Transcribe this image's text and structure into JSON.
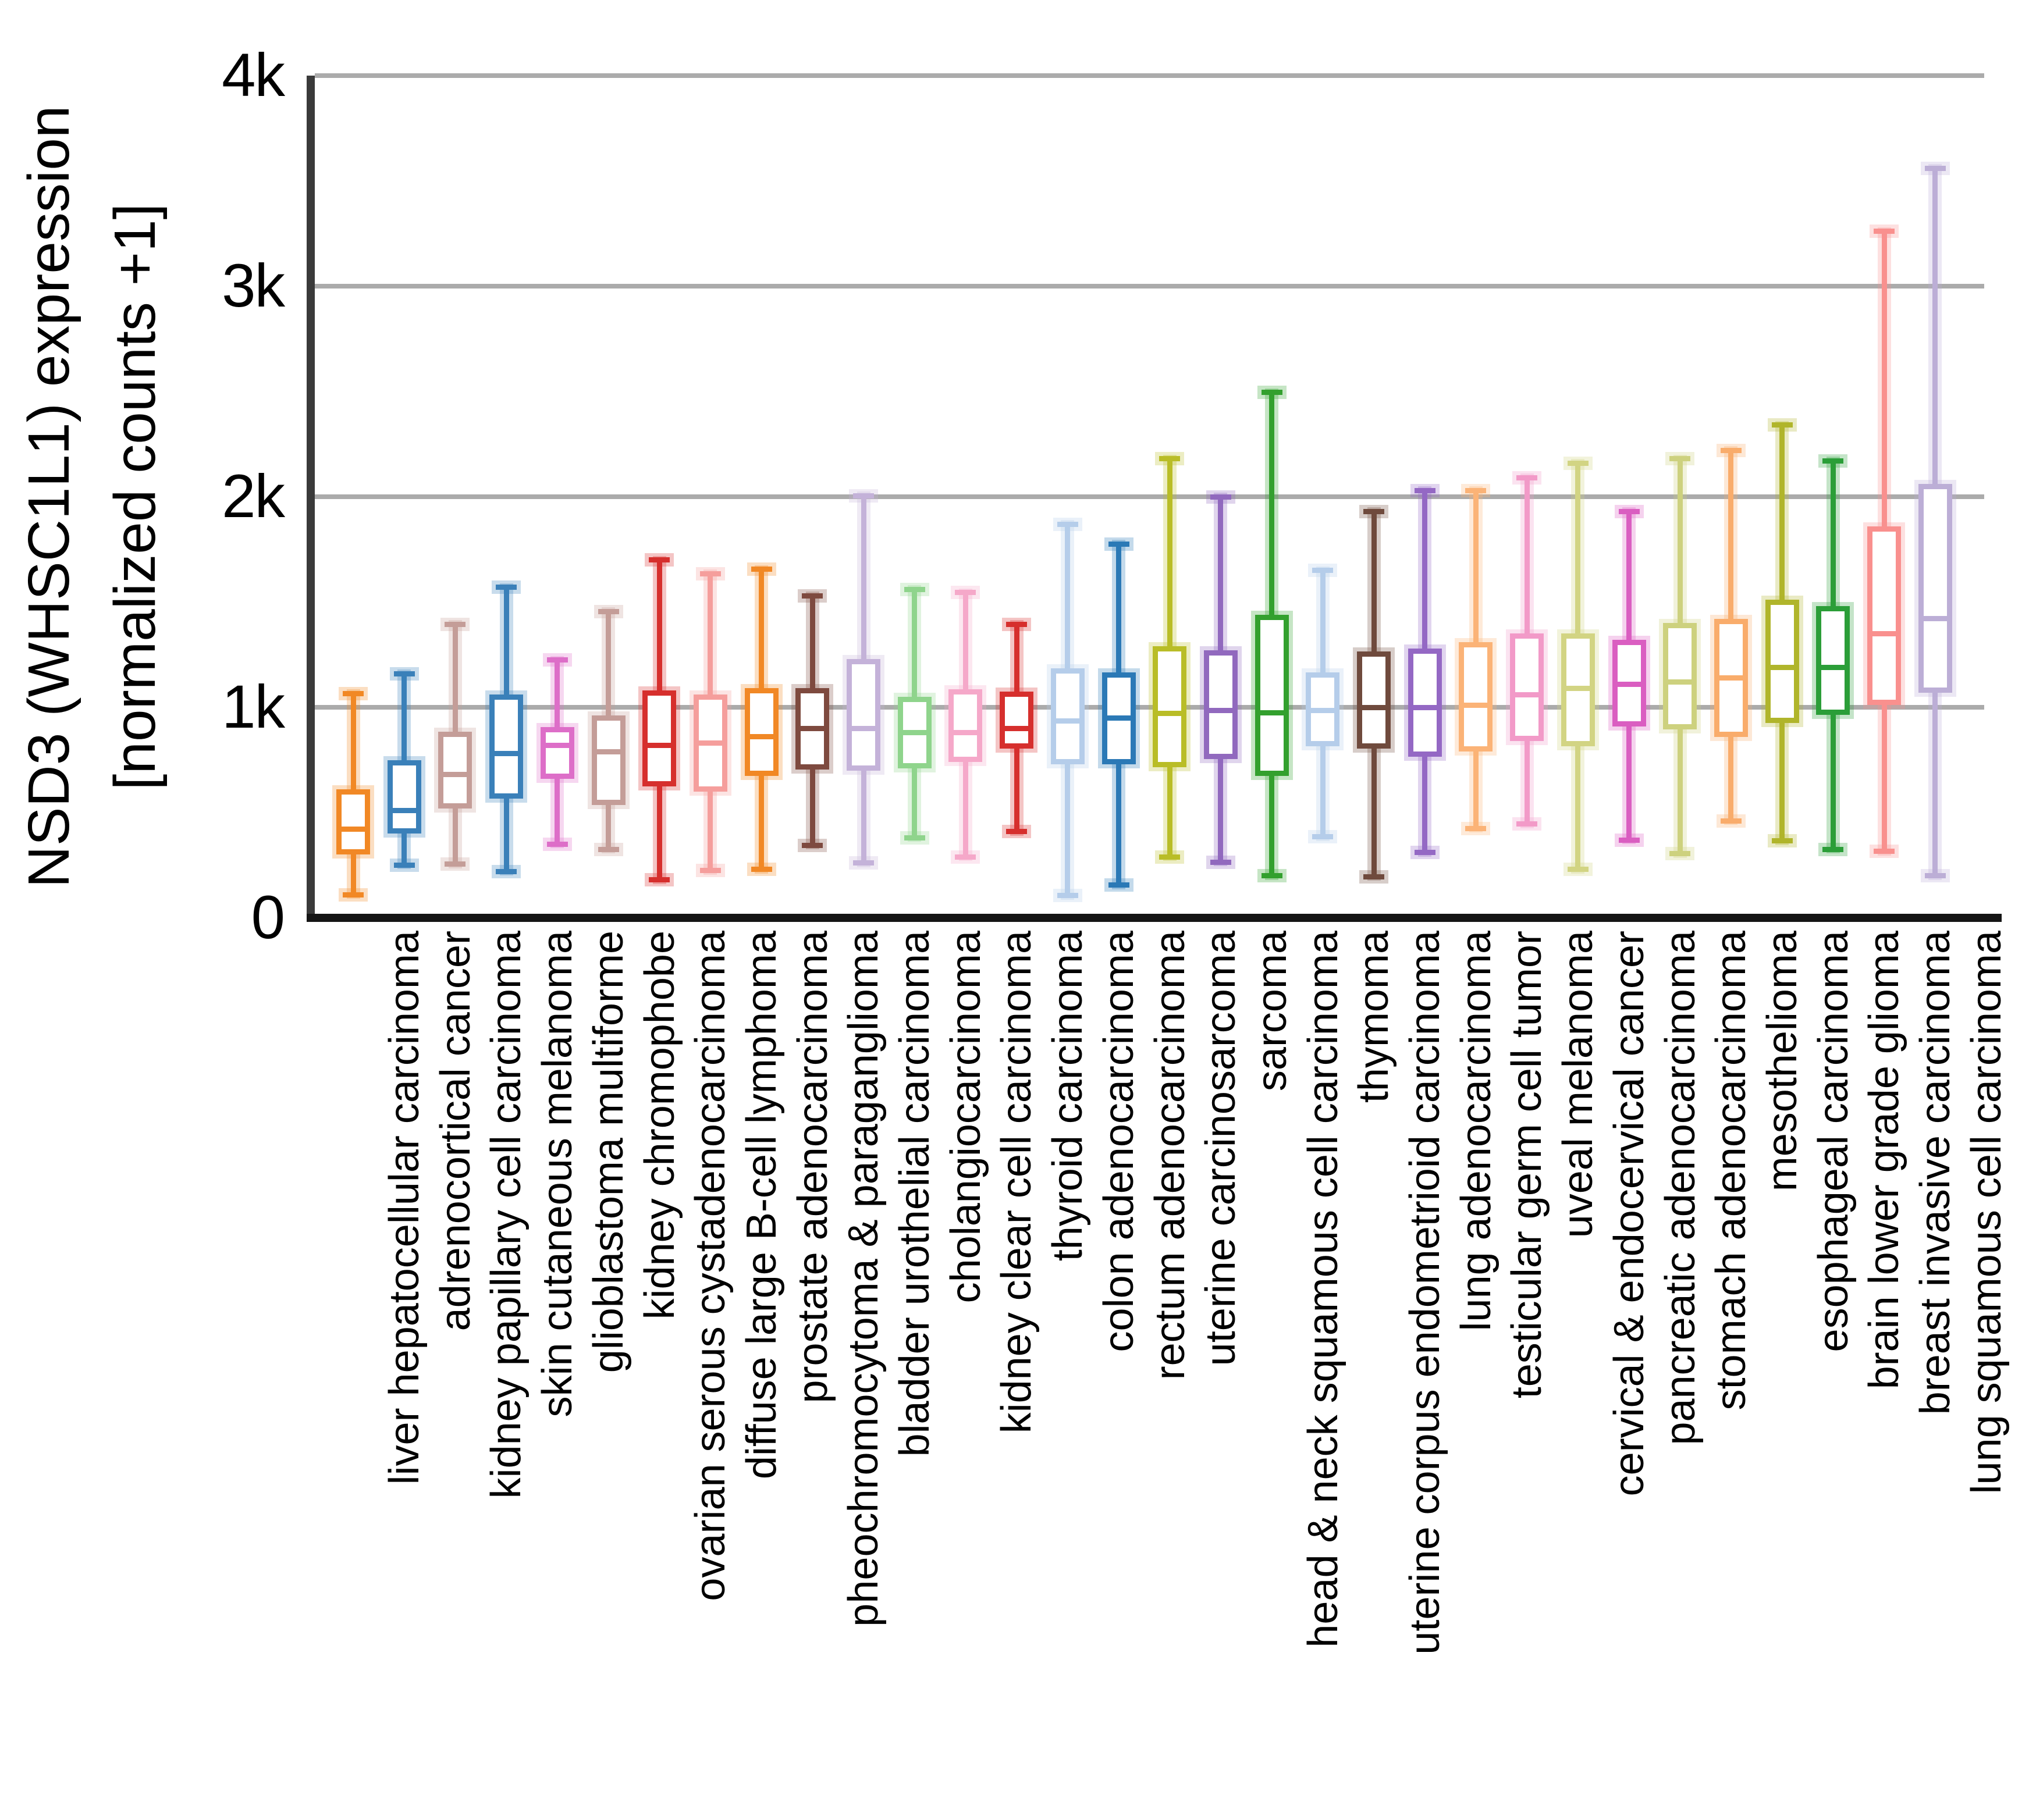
{
  "figure": {
    "y_axis_title_line1": "NSD3 (WHSC1L1) expression",
    "y_axis_title_line2": "[normalized counts +1]"
  },
  "colors": {
    "background": "#ffffff",
    "grid": "#ababab",
    "y_axis_spine": "#3a3a3a",
    "x_axis_spine": "#151515",
    "text": "#000000"
  },
  "chart_data": {
    "type": "boxplot",
    "title": "",
    "ylabel": "NSD3 (WHSC1L1) expression [normalized counts +1]",
    "xlabel": "",
    "ylim": [
      0,
      4000
    ],
    "grid": true,
    "legend": "none",
    "yticks": [
      {
        "value": 0,
        "label": "0"
      },
      {
        "value": 1000,
        "label": "1k"
      },
      {
        "value": 2000,
        "label": "2k"
      },
      {
        "value": 3000,
        "label": "3k"
      },
      {
        "value": 4000,
        "label": "4k"
      }
    ],
    "boxes": [
      {
        "label": "liver hepatocellular carcinoma",
        "color": "#F18825",
        "low": 110,
        "q1": 300,
        "median": 420,
        "q3": 610,
        "high": 1065
      },
      {
        "label": "adrenocortical cancer",
        "color": "#3A80B9",
        "low": 250,
        "q1": 400,
        "median": 510,
        "q3": 750,
        "high": 1160
      },
      {
        "label": "kidney papillary cell carcinoma",
        "color": "#C49D98",
        "low": 255,
        "q1": 520,
        "median": 680,
        "q3": 885,
        "high": 1395
      },
      {
        "label": "skin cutaneous melanoma",
        "color": "#3A80B9",
        "low": 220,
        "q1": 565,
        "median": 780,
        "q3": 1060,
        "high": 1570
      },
      {
        "label": "glioblastoma multiforme",
        "color": "#DD6EC8",
        "low": 350,
        "q1": 660,
        "median": 820,
        "q3": 905,
        "high": 1225
      },
      {
        "label": "kidney chromophobe",
        "color": "#C49D98",
        "low": 325,
        "q1": 535,
        "median": 790,
        "q3": 960,
        "high": 1455
      },
      {
        "label": "ovarian serous cystadenocarcinoma",
        "color": "#D62F2D",
        "low": 180,
        "q1": 625,
        "median": 820,
        "q3": 1080,
        "high": 1700
      },
      {
        "label": "diffuse large B-cell lymphoma",
        "color": "#F59E9C",
        "low": 225,
        "q1": 600,
        "median": 830,
        "q3": 1060,
        "high": 1635
      },
      {
        "label": "prostate adenocarcinoma",
        "color": "#F18825",
        "low": 230,
        "q1": 675,
        "median": 860,
        "q3": 1090,
        "high": 1655
      },
      {
        "label": "pheochromocytoma & paraganglioma",
        "color": "#7E4A3F",
        "low": 345,
        "q1": 705,
        "median": 900,
        "q3": 1090,
        "high": 1530
      },
      {
        "label": "bladder urothelial carcinoma",
        "color": "#C4B2D9",
        "low": 260,
        "q1": 700,
        "median": 900,
        "q3": 1230,
        "high": 2005
      },
      {
        "label": "cholangiocarcinoma",
        "color": "#8FD48C",
        "low": 380,
        "q1": 710,
        "median": 880,
        "q3": 1050,
        "high": 1560
      },
      {
        "label": "kidney clear cell carcinoma",
        "color": "#F5A8C9",
        "low": 290,
        "q1": 740,
        "median": 880,
        "q3": 1085,
        "high": 1545
      },
      {
        "label": "thyroid carcinoma",
        "color": "#D62F2D",
        "low": 410,
        "q1": 805,
        "median": 900,
        "q3": 1075,
        "high": 1395
      },
      {
        "label": "colon adenocarcinoma",
        "color": "#B5CDEA",
        "low": 105,
        "q1": 730,
        "median": 935,
        "q3": 1185,
        "high": 1870
      },
      {
        "label": "rectum adenocarcinoma",
        "color": "#2B79B6",
        "low": 155,
        "q1": 730,
        "median": 950,
        "q3": 1165,
        "high": 1775
      },
      {
        "label": "uterine carcinosarcoma",
        "color": "#B9BD27",
        "low": 290,
        "q1": 715,
        "median": 970,
        "q3": 1290,
        "high": 2180
      },
      {
        "label": "sarcoma",
        "color": "#9169BE",
        "low": 265,
        "q1": 755,
        "median": 985,
        "q3": 1270,
        "high": 2000
      },
      {
        "label": "head & neck squamous cell carcinoma",
        "color": "#33A02E",
        "low": 200,
        "q1": 675,
        "median": 975,
        "q3": 1440,
        "high": 2495
      },
      {
        "label": "thymoma",
        "color": "#B5CDEA",
        "low": 385,
        "q1": 815,
        "median": 985,
        "q3": 1165,
        "high": 1650
      },
      {
        "label": "uterine corpus endometrioid carcinoma",
        "color": "#6F4A3D",
        "low": 195,
        "q1": 805,
        "median": 1000,
        "q3": 1265,
        "high": 1930
      },
      {
        "label": "lung adenocarcinoma",
        "color": "#9468C4",
        "low": 310,
        "q1": 765,
        "median": 1000,
        "q3": 1280,
        "high": 2030
      },
      {
        "label": "testicular germ cell tumor",
        "color": "#FBB377",
        "low": 425,
        "q1": 790,
        "median": 1010,
        "q3": 1310,
        "high": 2030
      },
      {
        "label": "uveal melanoma",
        "color": "#F29AC8",
        "low": 445,
        "q1": 840,
        "median": 1060,
        "q3": 1350,
        "high": 2090
      },
      {
        "label": "cervical & endocervical cancer",
        "color": "#D2D483",
        "low": 230,
        "q1": 815,
        "median": 1090,
        "q3": 1350,
        "high": 2160
      },
      {
        "label": "pancreatic adenocarcinoma",
        "color": "#DA5EC1",
        "low": 370,
        "q1": 910,
        "median": 1110,
        "q3": 1320,
        "high": 1930
      },
      {
        "label": "stomach adenocarcinoma",
        "color": "#CDD17E",
        "low": 305,
        "q1": 895,
        "median": 1120,
        "q3": 1400,
        "high": 2180
      },
      {
        "label": "mesothelioma",
        "color": "#F9AC6B",
        "low": 460,
        "q1": 860,
        "median": 1140,
        "q3": 1420,
        "high": 2220
      },
      {
        "label": "esophageal carcinoma",
        "color": "#B0B52B",
        "low": 365,
        "q1": 925,
        "median": 1190,
        "q3": 1510,
        "high": 2340
      },
      {
        "label": "brain lower grade glioma",
        "color": "#2B9E38",
        "low": 325,
        "q1": 965,
        "median": 1190,
        "q3": 1480,
        "high": 2170
      },
      {
        "label": "breast invasive carcinoma",
        "color": "#F9908E",
        "low": 315,
        "q1": 1010,
        "median": 1350,
        "q3": 1860,
        "high": 3260
      },
      {
        "label": "lung squamous cell carcinoma",
        "color": "#BCAED6",
        "low": 200,
        "q1": 1070,
        "median": 1420,
        "q3": 2060,
        "high": 3560
      }
    ]
  }
}
